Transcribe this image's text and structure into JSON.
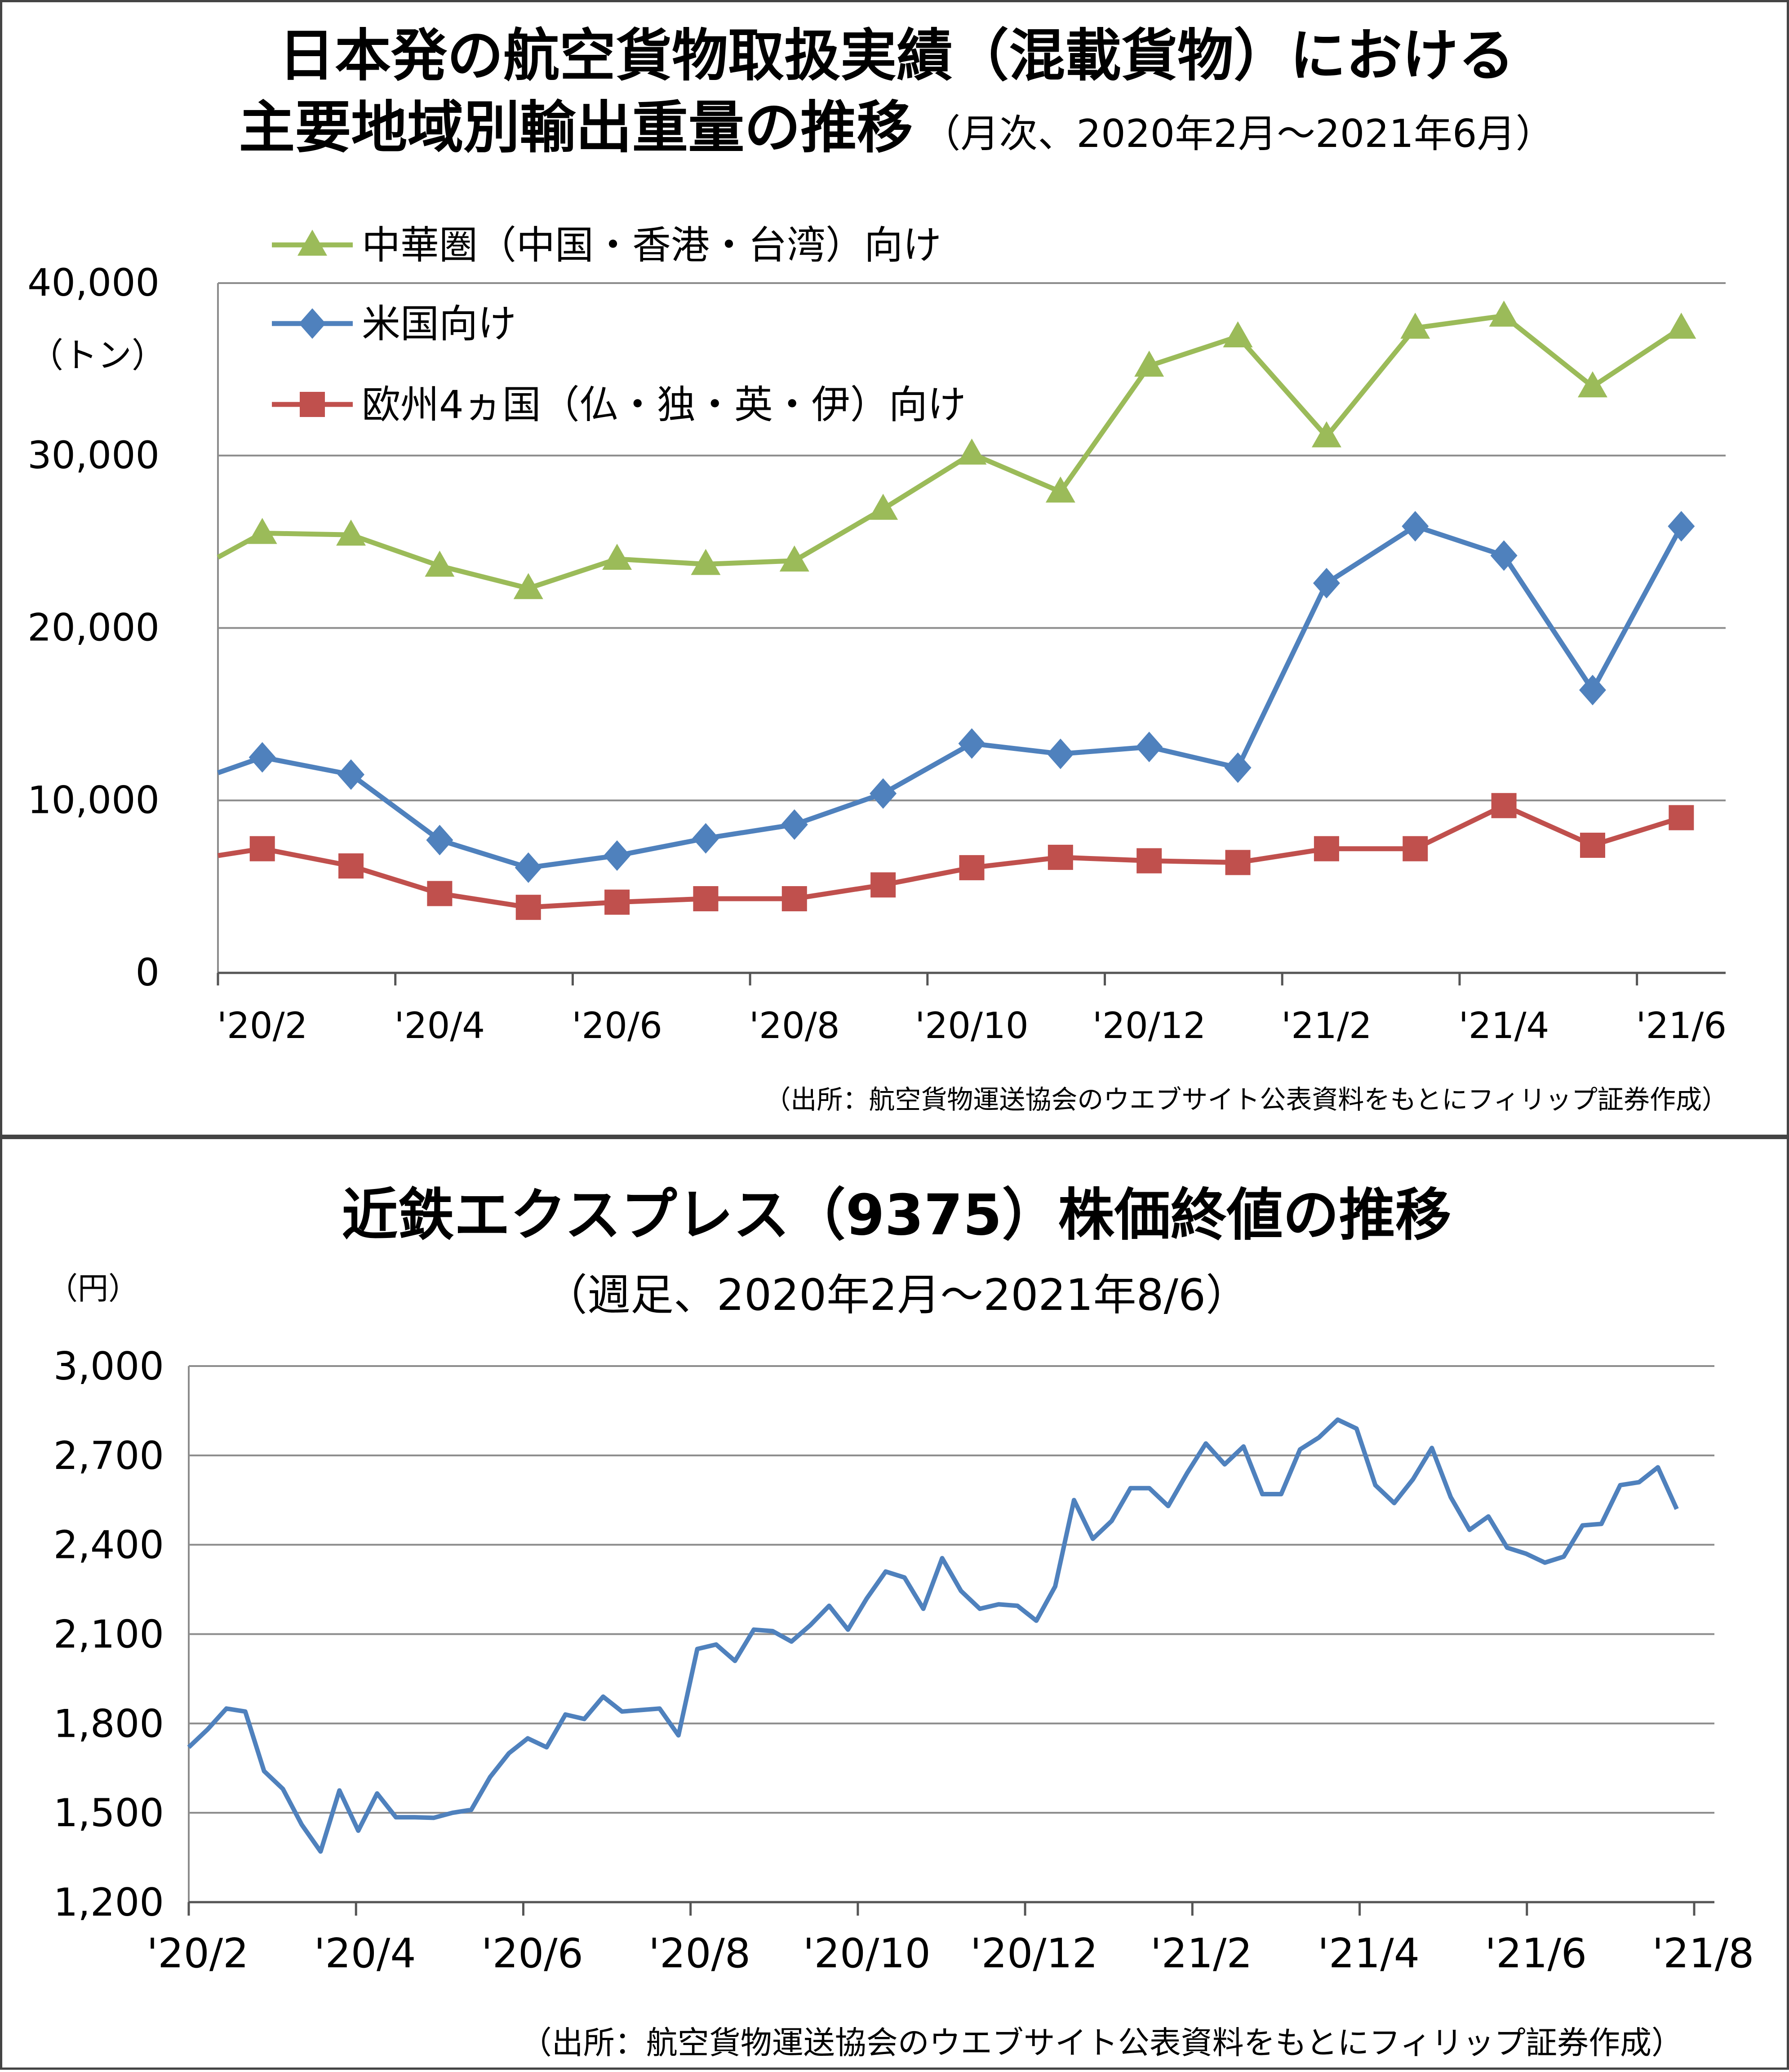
{
  "chart_data": [
    {
      "type": "line",
      "title": "日本発の航空貨物取扱実績（混載貨物）における",
      "title_line2": "主要地域別輸出重量の推移",
      "subtitle": "（月次、2020年2月～2021年6月）",
      "ylabel": "（トン）",
      "source": "（出所：航空貨物運送協会のウエブサイト公表資料をもとにフィリップ証券作成）",
      "ylim": [
        0,
        40000
      ],
      "yticks": [
        0,
        10000,
        20000,
        30000,
        40000
      ],
      "ytick_labels": [
        "0",
        "10,000",
        "20,000",
        "30,000",
        "40,000"
      ],
      "categories": [
        "'20/2",
        "'20/3",
        "'20/4",
        "'20/5",
        "'20/6",
        "'20/7",
        "'20/8",
        "'20/9",
        "'20/10",
        "'20/11",
        "'20/12",
        "'21/1",
        "'21/2",
        "'21/3",
        "'21/4",
        "'21/5",
        "'21/6"
      ],
      "xtick_labels": [
        "'20/2",
        "'20/4",
        "'20/6",
        "'20/8",
        "'20/10",
        "'20/12",
        "'21/2",
        "'21/4",
        "'21/6"
      ],
      "grid": true,
      "legend_position": "top-left",
      "series": [
        {
          "name": "中華圏（中国・香港・台湾）向け",
          "color": "#9BBB59",
          "marker": "triangle",
          "lead_in": 24100,
          "values": [
            25500,
            25400,
            23600,
            22300,
            24000,
            23700,
            23900,
            26900,
            30100,
            27900,
            35200,
            36900,
            31100,
            37400,
            38100,
            34000,
            37400
          ]
        },
        {
          "name": "米国向け",
          "color": "#4F81BD",
          "marker": "diamond",
          "lead_in": 11600,
          "values": [
            12500,
            11500,
            7700,
            6100,
            6800,
            7800,
            8600,
            10400,
            13300,
            12700,
            13100,
            11900,
            22600,
            25900,
            24200,
            16400,
            25900
          ]
        },
        {
          "name": "欧州4ヵ国（仏・独・英・伊）向け",
          "color": "#C0504D",
          "marker": "square",
          "lead_in": 6800,
          "values": [
            7200,
            6200,
            4600,
            3800,
            4100,
            4300,
            4300,
            5100,
            6100,
            6700,
            6500,
            6400,
            7200,
            7200,
            9700,
            7400,
            9000
          ]
        }
      ]
    },
    {
      "type": "line",
      "title": "近鉄エクスプレス（9375）株価終値の推移",
      "subtitle": "（週足、2020年2月～2021年8/6）",
      "ylabel": "（円）",
      "source": "（出所：航空貨物運送協会のウエブサイト公表資料をもとにフィリップ証券作成）",
      "ylim": [
        1200,
        3000
      ],
      "yticks": [
        1200,
        1500,
        1800,
        2100,
        2400,
        2700,
        3000
      ],
      "ytick_labels": [
        "1,200",
        "1,500",
        "1,800",
        "2,100",
        "2,400",
        "2,700",
        "3,000"
      ],
      "xtick_labels": [
        "'20/2",
        "'20/4",
        "'20/6",
        "'20/8",
        "'20/10",
        "'20/12",
        "'21/2",
        "'21/4",
        "'21/6",
        "'21/8"
      ],
      "grid": true,
      "series": [
        {
          "name": "",
          "color": "#4F81BD",
          "values": [
            1720,
            1780,
            1850,
            1840,
            1640,
            1580,
            1460,
            1370,
            1575,
            1440,
            1565,
            1485,
            1485,
            1483,
            1500,
            1510,
            1620,
            1700,
            1750,
            1720,
            1830,
            1815,
            1890,
            1840,
            1845,
            1850,
            1760,
            2050,
            2065,
            2010,
            2115,
            2110,
            2075,
            2130,
            2195,
            2115,
            2220,
            2310,
            2290,
            2185,
            2355,
            2245,
            2185,
            2200,
            2195,
            2145,
            2260,
            2550,
            2420,
            2480,
            2590,
            2590,
            2530,
            2640,
            2740,
            2670,
            2730,
            2570,
            2570,
            2720,
            2760,
            2820,
            2790,
            2600,
            2540,
            2620,
            2725,
            2560,
            2450,
            2495,
            2390,
            2370,
            2340,
            2360,
            2465,
            2470,
            2600,
            2610,
            2660,
            2520
          ]
        }
      ]
    }
  ]
}
